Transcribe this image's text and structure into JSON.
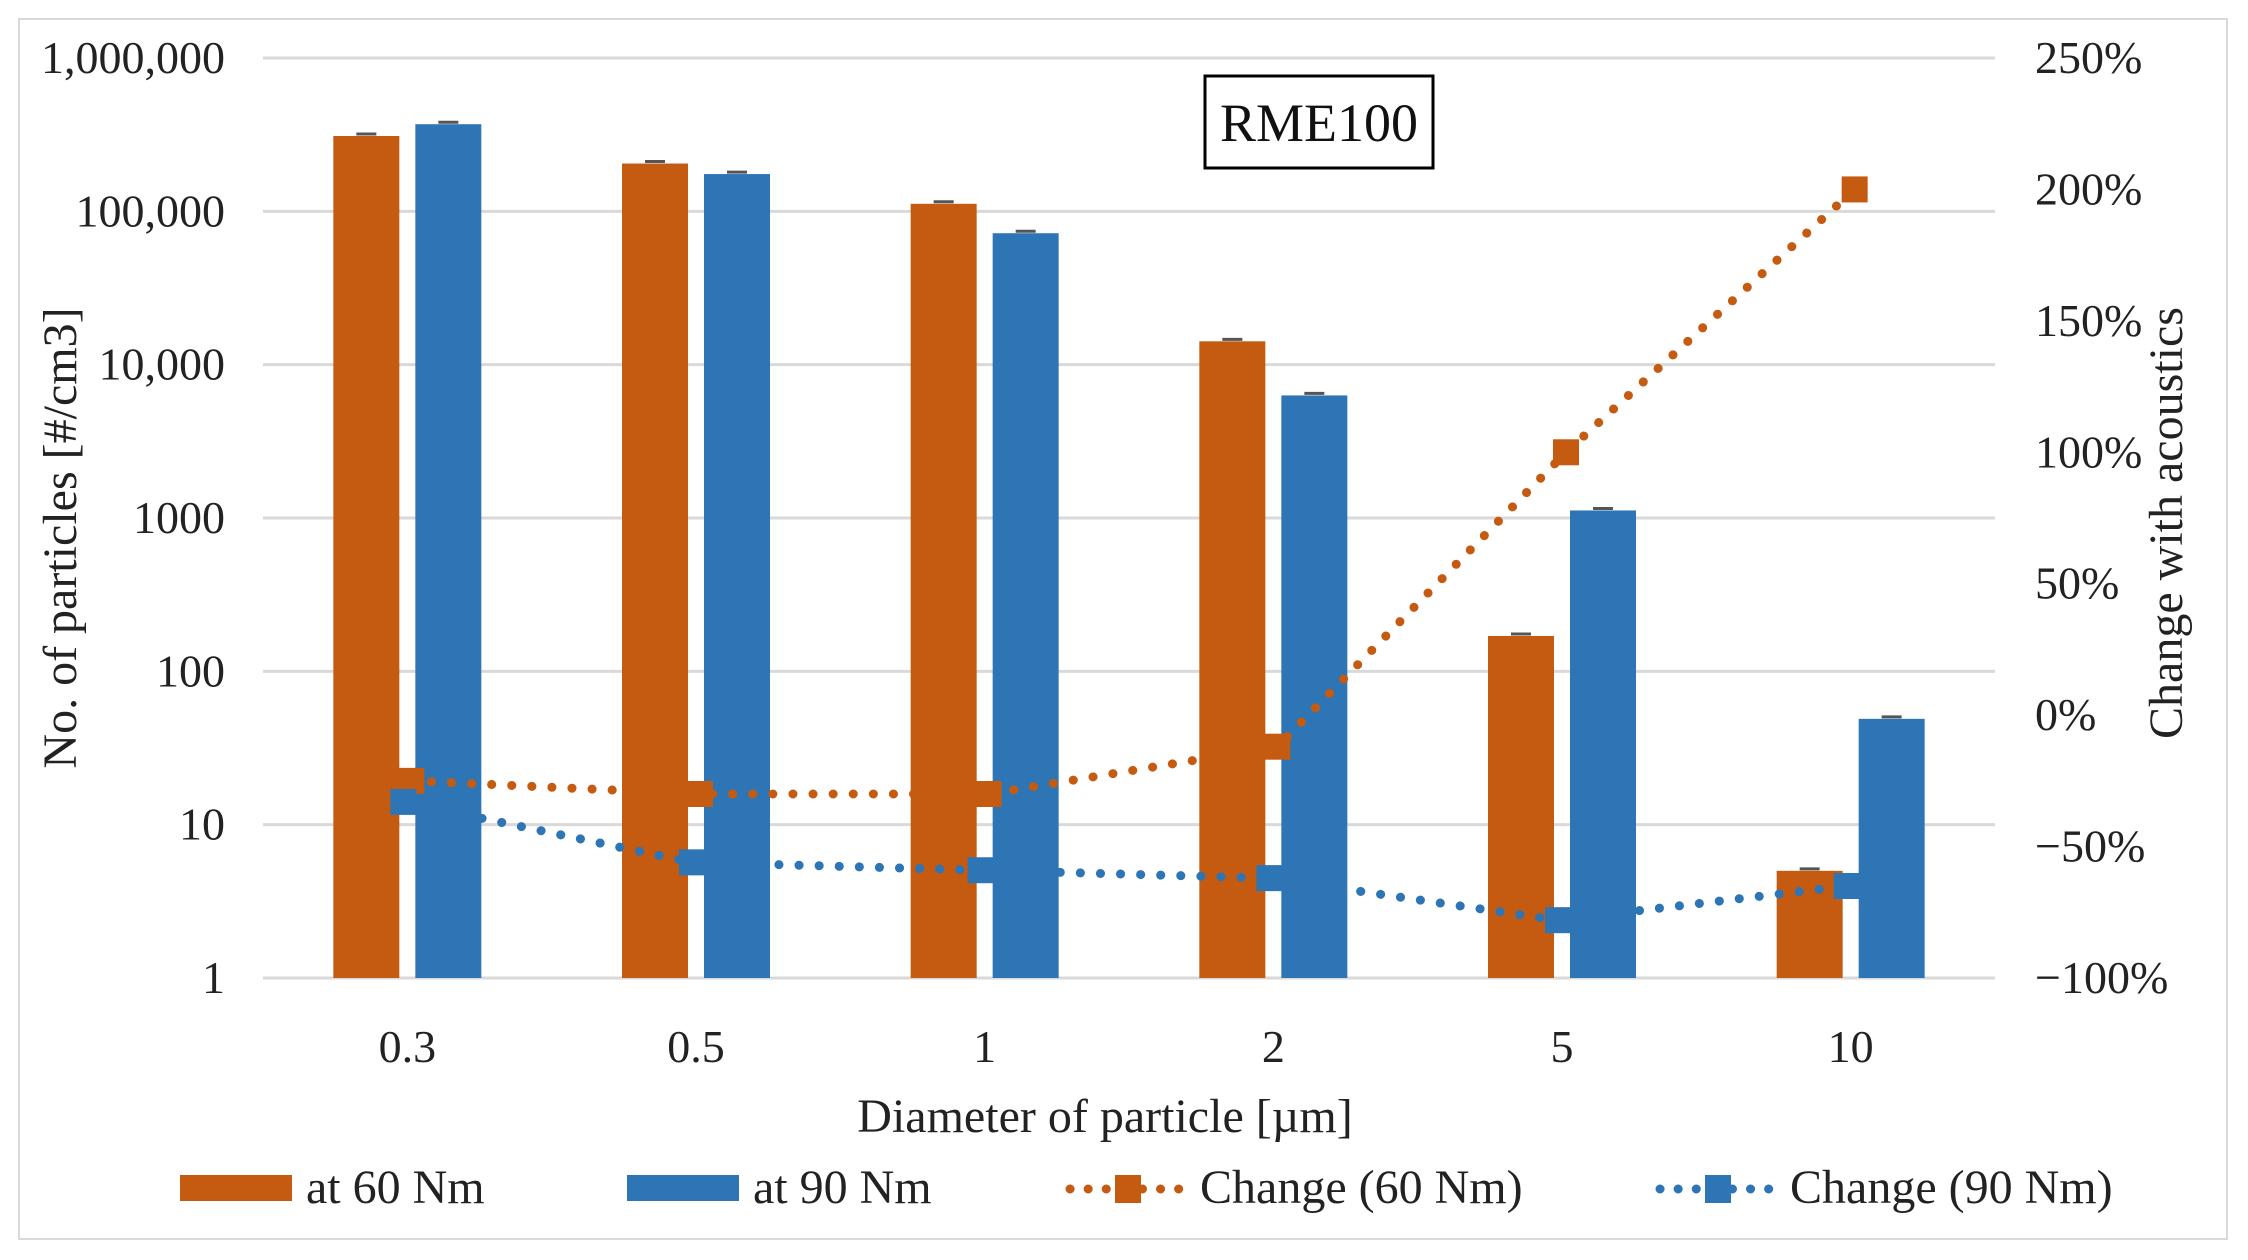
{
  "chart_data": {
    "type": "bar",
    "title": "RME100",
    "xlabel": "Diameter of particle [µm]",
    "ylabel": "No. of particles [#/cm3]",
    "y2label": "Change with acoustics",
    "yscale": "log",
    "ylim": [
      1,
      1000000
    ],
    "y2lim": [
      -1.0,
      2.5
    ],
    "categories": [
      "0.3",
      "0.5",
      "1",
      "2",
      "5",
      "10"
    ],
    "y_ticks": [
      {
        "value": 1,
        "label": "1"
      },
      {
        "value": 10,
        "label": "10"
      },
      {
        "value": 100,
        "label": "100"
      },
      {
        "value": 1000,
        "label": "1000"
      },
      {
        "value": 10000,
        "label": "10,000"
      },
      {
        "value": 100000,
        "label": "100,000"
      },
      {
        "value": 1000000,
        "label": "1,000,000"
      }
    ],
    "y2_ticks": [
      {
        "value": -1.0,
        "label": "−100%"
      },
      {
        "value": -0.5,
        "label": "−50%"
      },
      {
        "value": 0.0,
        "label": "0%"
      },
      {
        "value": 0.5,
        "label": "50%"
      },
      {
        "value": 1.0,
        "label": "100%"
      },
      {
        "value": 1.5,
        "label": "150%"
      },
      {
        "value": 2.0,
        "label": "200%"
      },
      {
        "value": 2.5,
        "label": "250%"
      }
    ],
    "bar_series": [
      {
        "name": "at 60 Nm",
        "color": "#c55a11",
        "values": [
          310000,
          205000,
          112000,
          14200,
          170,
          5
        ]
      },
      {
        "name": "at 90 Nm",
        "color": "#2e75b6",
        "values": [
          370000,
          175000,
          72000,
          6300,
          1120,
          49
        ]
      }
    ],
    "line_series": [
      {
        "name": "Change (60 Nm)",
        "color": "#c55a11",
        "axis": "y2",
        "values": [
          -0.25,
          -0.3,
          -0.3,
          -0.12,
          1.0,
          2.0
        ]
      },
      {
        "name": "Change (90 Nm)",
        "color": "#2e75b6",
        "axis": "y2",
        "values": [
          -0.33,
          -0.56,
          -0.59,
          -0.62,
          -0.78,
          -0.65
        ]
      }
    ],
    "legend_position": "bottom",
    "grid": true
  }
}
